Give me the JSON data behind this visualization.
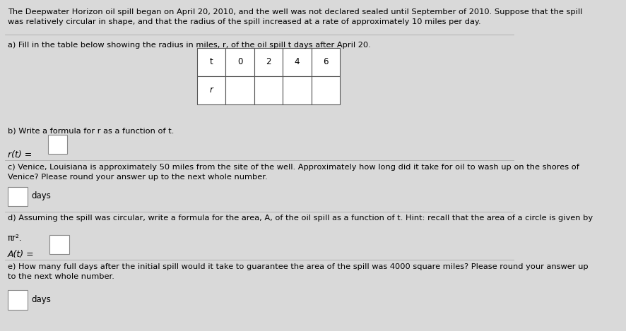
{
  "bg_color": "#d9d9d9",
  "text_color": "#000000",
  "title_text": "The Deepwater Horizon oil spill began on April 20, 2010, and the well was not declared sealed until September of 2010. Suppose that the spill\nwas relatively circular in shape, and that the radius of the spill increased at a rate of approximately 10 miles per day.",
  "part_a_label": "a) Fill in the table below showing the radius in miles, r, of the oil spill t days after April 20.",
  "part_b_label": "b) Write a formula for r as a function of t.",
  "part_b_formula": "r(t) =",
  "part_c_label": "c) Venice, Louisiana is approximately 50 miles from the site of the well. Approximately how long did it take for oil to wash up on the shores of\nVenice? Please round your answer up to the next whole number.",
  "part_c_unit": "days",
  "part_d_label_1": "d) Assuming the spill was circular, write a formula for the area, A, of the oil spill as a function of t. Hint: recall that the area of a circle is given by",
  "part_d_label_2": "πr².",
  "part_d_formula": "A(t) =",
  "part_e_label": "e) How many full days after the initial spill would it take to guarantee the area of the spill was 4000 square miles? Please round your answer up\nto the next whole number.",
  "part_e_unit": "days",
  "table_t_values": [
    "t",
    "0",
    "2",
    "4",
    "6"
  ],
  "table_r_label": "r",
  "line_color": "#aaaaaa",
  "line_lw": 0.6,
  "fig_width": 8.86,
  "fig_height": 4.69,
  "dpi": 100
}
